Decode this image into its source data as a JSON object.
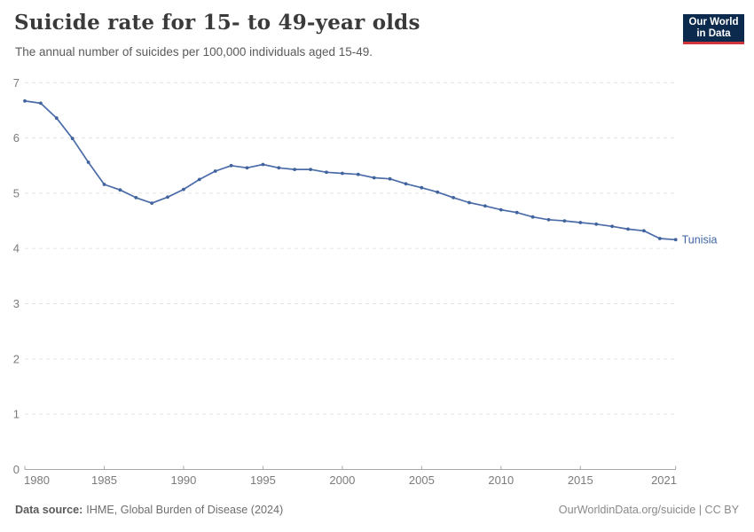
{
  "header": {
    "title": "Suicide rate for 15- to 49-year olds",
    "subtitle": "The annual number of suicides per 100,000 individuals aged 15-49.",
    "logo": {
      "line1": "Our World",
      "line2": "in Data"
    }
  },
  "footer": {
    "source_label": "Data source:",
    "source_value": "IHME, Global Burden of Disease (2024)",
    "rights": "OurWorldinData.org/suicide | CC BY"
  },
  "colors": {
    "line": "#4b6ca8",
    "point": "#41639d",
    "entity_label": "#4166a5",
    "grid": "#e3e3e3",
    "axis": "#a8a8a8",
    "tick_label": "#7b7b7b",
    "logo_bg": "#0c2a4e",
    "logo_red": "#d0353b"
  },
  "chart_data": {
    "type": "line",
    "title": "Suicide rate for 15- to 49-year olds",
    "subtitle": "The annual number of suicides per 100,000 individuals aged 15-49.",
    "xlabel": "",
    "ylabel": "",
    "xlim": [
      1980,
      2021
    ],
    "ylim": [
      0,
      7
    ],
    "yticks": [
      0,
      1,
      2,
      3,
      4,
      5,
      6,
      7
    ],
    "xticks": [
      1980,
      1985,
      1990,
      1995,
      2000,
      2005,
      2010,
      2015,
      2021
    ],
    "grid": "horizontal-dashed",
    "legend_position": "end-of-line-label",
    "series": [
      {
        "name": "Tunisia",
        "x": [
          1980,
          1981,
          1982,
          1983,
          1984,
          1985,
          1986,
          1987,
          1988,
          1989,
          1990,
          1991,
          1992,
          1993,
          1994,
          1995,
          1996,
          1997,
          1998,
          1999,
          2000,
          2001,
          2002,
          2003,
          2004,
          2005,
          2006,
          2007,
          2008,
          2009,
          2010,
          2011,
          2012,
          2013,
          2014,
          2015,
          2016,
          2017,
          2018,
          2019,
          2020,
          2021
        ],
        "values": [
          6.67,
          6.63,
          6.36,
          5.99,
          5.56,
          5.16,
          5.06,
          4.92,
          4.82,
          4.93,
          5.07,
          5.25,
          5.4,
          5.5,
          5.46,
          5.52,
          5.46,
          5.43,
          5.43,
          5.38,
          5.36,
          5.34,
          5.28,
          5.26,
          5.17,
          5.1,
          5.02,
          4.92,
          4.83,
          4.77,
          4.7,
          4.65,
          4.57,
          4.52,
          4.5,
          4.47,
          4.44,
          4.4,
          4.35,
          4.32,
          4.18,
          4.16
        ]
      }
    ]
  }
}
